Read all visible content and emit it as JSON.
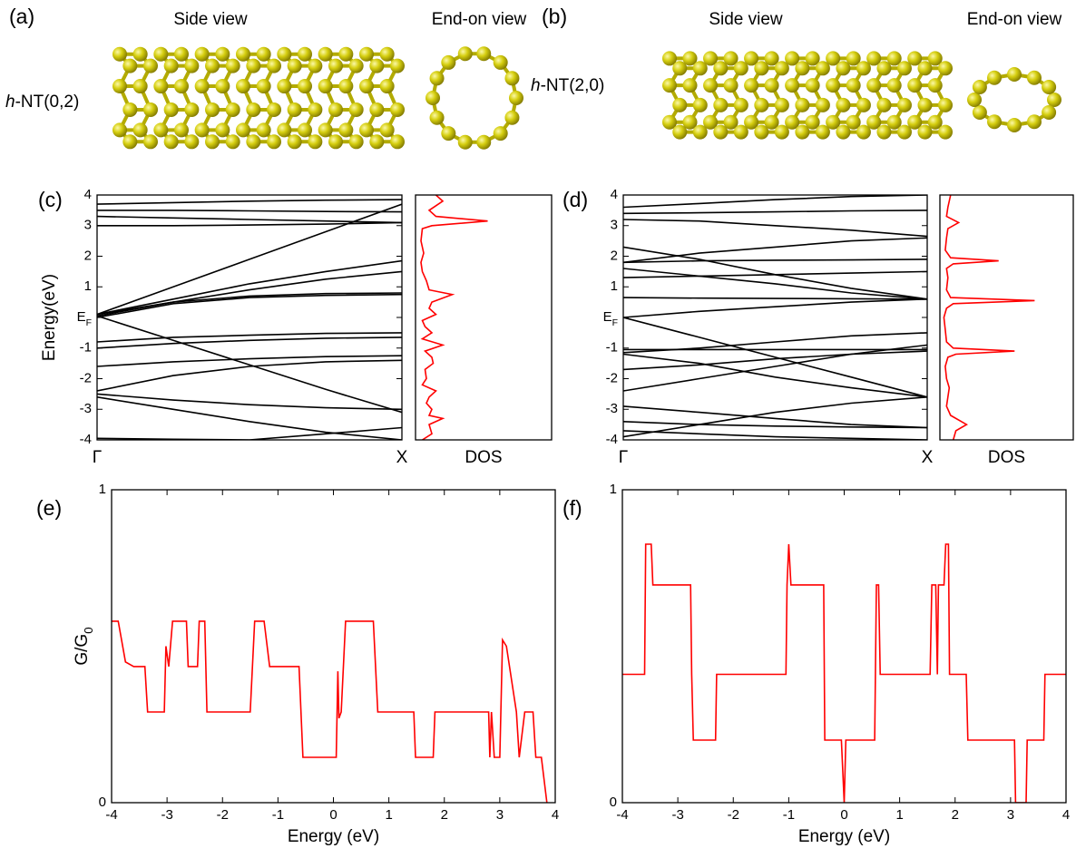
{
  "panels": {
    "a": {
      "label": "(a)",
      "side": "Side view",
      "end": "End-on view",
      "name": "h-NT(0,2)"
    },
    "b": {
      "label": "(b)",
      "side": "Side view",
      "end": "End-on view",
      "name": "h-NT(2,0)"
    }
  },
  "chart_data": [
    {
      "type": "line",
      "label": "(c)",
      "ylabel": "Energy(eV)",
      "x": [
        0,
        0.25,
        0.5,
        0.75,
        1
      ],
      "xlim": [
        0,
        1
      ],
      "xticks": [
        {
          "value": 0,
          "label": "Γ"
        },
        {
          "value": 1,
          "label": "X"
        }
      ],
      "ylim": [
        -4,
        4
      ],
      "yticks": [
        4,
        3,
        2,
        1,
        {
          "value": 0,
          "label": "EF"
        },
        -1,
        -2,
        -3,
        -4
      ],
      "series": [
        {
          "color": "#000000",
          "values": [
            3.7,
            3.75,
            3.8,
            3.83,
            3.85
          ]
        },
        {
          "color": "#000000",
          "values": [
            3.5,
            3.5,
            3.48,
            3.46,
            3.45
          ]
        },
        {
          "color": "#000000",
          "values": [
            3.3,
            3.25,
            3.2,
            3.15,
            3.1
          ]
        },
        {
          "color": "#000000",
          "values": [
            3.0,
            3.0,
            3.02,
            3.05,
            3.1
          ]
        },
        {
          "color": "#000000",
          "values": [
            0.1,
            1.0,
            1.9,
            2.8,
            3.7
          ]
        },
        {
          "color": "#000000",
          "values": [
            0.1,
            0.6,
            1.1,
            1.5,
            1.85
          ]
        },
        {
          "color": "#000000",
          "values": [
            0.1,
            0.5,
            0.9,
            1.25,
            1.5
          ]
        },
        {
          "color": "#000000",
          "values": [
            0.05,
            0.5,
            0.7,
            0.78,
            0.8
          ]
        },
        {
          "color": "#000000",
          "values": [
            0.0,
            0.45,
            0.65,
            0.72,
            0.75
          ]
        },
        {
          "color": "#000000",
          "values": [
            0.05,
            -0.75,
            -1.55,
            -2.35,
            -3.1
          ]
        },
        {
          "color": "#000000",
          "values": [
            -0.8,
            -0.65,
            -0.58,
            -0.52,
            -0.5
          ]
        },
        {
          "color": "#000000",
          "values": [
            -1.0,
            -0.85,
            -0.75,
            -0.68,
            -0.65
          ]
        },
        {
          "color": "#000000",
          "values": [
            -1.6,
            -1.45,
            -1.35,
            -1.28,
            -1.25
          ]
        },
        {
          "color": "#000000",
          "values": [
            -2.4,
            -1.9,
            -1.6,
            -1.45,
            -1.4
          ]
        },
        {
          "color": "#000000",
          "values": [
            -2.5,
            -2.7,
            -2.85,
            -2.95,
            -3.0
          ]
        },
        {
          "color": "#000000",
          "values": [
            -2.6,
            -3.0,
            -3.4,
            -3.75,
            -4.0
          ]
        },
        {
          "color": "#000000",
          "values": [
            -3.95,
            -3.98,
            -4.0,
            -3.8,
            -3.6
          ]
        }
      ]
    },
    {
      "type": "line",
      "orientation": "horizontal",
      "ylabel": "DOS",
      "x": [
        -4,
        -3.8,
        -3.5,
        -3.3,
        -3.2,
        -3.0,
        -2.8,
        -2.6,
        -2.4,
        -2.2,
        -2.0,
        -1.7,
        -1.5,
        -1.3,
        -1.1,
        -0.9,
        -0.7,
        -0.5,
        -0.3,
        -0.1,
        0.1,
        0.3,
        0.5,
        0.75,
        0.9,
        1.2,
        1.5,
        1.8,
        2.1,
        2.5,
        2.9,
        3.0,
        3.15,
        3.3,
        3.5,
        3.8,
        4
      ],
      "xlim": [
        -4,
        4
      ],
      "ylim": [
        0,
        1
      ],
      "series": [
        {
          "color": "#ff0000",
          "values": [
            0.05,
            0.12,
            0.1,
            0.2,
            0.1,
            0.12,
            0.08,
            0.1,
            0.15,
            0.05,
            0.08,
            0.07,
            0.13,
            0.12,
            0.07,
            0.2,
            0.05,
            0.12,
            0.07,
            0.05,
            0.15,
            0.1,
            0.12,
            0.27,
            0.1,
            0.08,
            0.05,
            0.04,
            0.06,
            0.04,
            0.05,
            0.12,
            0.53,
            0.15,
            0.1,
            0.2,
            0.15
          ]
        }
      ]
    },
    {
      "type": "line",
      "label": "(d)",
      "x": [
        0,
        0.25,
        0.5,
        0.75,
        1
      ],
      "xlim": [
        0,
        1
      ],
      "xticks": [
        {
          "value": 0,
          "label": "Γ"
        },
        {
          "value": 1,
          "label": "X"
        }
      ],
      "ylim": [
        -4,
        4
      ],
      "yticks": [
        4,
        3,
        2,
        1,
        {
          "value": 0,
          "label": "EF"
        },
        -1,
        -2,
        -3,
        -4
      ],
      "series": [
        {
          "color": "#000000",
          "values": [
            3.6,
            3.72,
            3.85,
            3.95,
            4.0
          ]
        },
        {
          "color": "#000000",
          "values": [
            3.4,
            3.42,
            3.45,
            3.48,
            3.5
          ]
        },
        {
          "color": "#000000",
          "values": [
            3.2,
            3.15,
            3.0,
            2.85,
            2.65
          ]
        },
        {
          "color": "#000000",
          "values": [
            2.3,
            1.9,
            1.4,
            0.95,
            0.6
          ]
        },
        {
          "color": "#000000",
          "values": [
            1.8,
            1.85,
            1.87,
            1.88,
            1.9
          ]
        },
        {
          "color": "#000000",
          "values": [
            1.8,
            2.1,
            2.3,
            2.5,
            2.6
          ]
        },
        {
          "color": "#000000",
          "values": [
            1.6,
            1.35,
            1.1,
            0.8,
            0.6
          ]
        },
        {
          "color": "#000000",
          "values": [
            1.3,
            1.35,
            1.4,
            1.45,
            1.5
          ]
        },
        {
          "color": "#000000",
          "values": [
            0.65,
            0.63,
            0.62,
            0.61,
            0.6
          ]
        },
        {
          "color": "#000000",
          "values": [
            0.0,
            0.2,
            0.35,
            0.5,
            0.6
          ]
        },
        {
          "color": "#000000",
          "values": [
            0.0,
            -0.65,
            -1.3,
            -1.95,
            -2.6
          ]
        },
        {
          "color": "#000000",
          "values": [
            -1.05,
            -1.05,
            -1.05,
            -1.05,
            -1.05
          ]
        },
        {
          "color": "#000000",
          "values": [
            -1.15,
            -1.0,
            -0.8,
            -0.6,
            -0.5
          ]
        },
        {
          "color": "#000000",
          "values": [
            -1.2,
            -1.5,
            -1.95,
            -2.3,
            -2.6
          ]
        },
        {
          "color": "#000000",
          "values": [
            -1.7,
            -1.55,
            -1.35,
            -1.2,
            -1.1
          ]
        },
        {
          "color": "#000000",
          "values": [
            -2.4,
            -2.0,
            -1.6,
            -1.2,
            -0.9
          ]
        },
        {
          "color": "#000000",
          "values": [
            -2.9,
            -3.1,
            -3.3,
            -3.5,
            -3.6
          ]
        },
        {
          "color": "#000000",
          "values": [
            -3.4,
            -3.5,
            -3.55,
            -3.58,
            -3.6
          ]
        },
        {
          "color": "#000000",
          "values": [
            -3.9,
            -3.5,
            -3.1,
            -2.8,
            -2.6
          ]
        },
        {
          "color": "#000000",
          "values": [
            -3.7,
            -3.8,
            -3.9,
            -3.95,
            -4.0
          ]
        }
      ]
    },
    {
      "type": "line",
      "orientation": "horizontal",
      "ylabel": "DOS",
      "x": [
        -4,
        -3.7,
        -3.5,
        -3.2,
        -2.9,
        -2.6,
        -2.3,
        -2.0,
        -1.6,
        -1.3,
        -1.2,
        -1.1,
        -1.0,
        -0.8,
        -0.4,
        0,
        0.3,
        0.45,
        0.55,
        0.65,
        0.9,
        1.3,
        1.6,
        1.75,
        1.85,
        1.95,
        2.2,
        2.6,
        2.9,
        3.1,
        3.3,
        3.6,
        4
      ],
      "xlim": [
        -4,
        4
      ],
      "ylim": [
        0,
        1
      ],
      "series": [
        {
          "color": "#ff0000",
          "values": [
            0.1,
            0.12,
            0.2,
            0.08,
            0.05,
            0.06,
            0.07,
            0.05,
            0.04,
            0.06,
            0.12,
            0.56,
            0.1,
            0.05,
            0.04,
            0.03,
            0.05,
            0.1,
            0.71,
            0.08,
            0.05,
            0.06,
            0.05,
            0.1,
            0.44,
            0.08,
            0.04,
            0.05,
            0.06,
            0.14,
            0.05,
            0.06,
            0.08
          ]
        }
      ]
    },
    {
      "type": "line",
      "label": "(e)",
      "xlabel": "Energy (eV)",
      "ylabel": "G/G0",
      "xlim": [
        -4,
        4
      ],
      "xticks": [
        -4,
        -3,
        -2,
        -1,
        0,
        1,
        2,
        3,
        4
      ],
      "ylim": [
        0,
        1
      ],
      "yticks": [
        0,
        1
      ],
      "series": [
        {
          "color": "#ff0000",
          "x": [
            -4,
            -3.88,
            -3.75,
            -3.6,
            -3.4,
            -3.35,
            -3.05,
            -3.02,
            -2.97,
            -2.9,
            -2.65,
            -2.62,
            -2.45,
            -2.42,
            -2.32,
            -2.28,
            -1.5,
            -1.42,
            -1.25,
            -1.15,
            -0.62,
            -0.55,
            0.05,
            0.08,
            0.1,
            0.14,
            0.22,
            0.72,
            0.8,
            1.45,
            1.48,
            1.8,
            1.83,
            2.8,
            2.82,
            2.85,
            2.9,
            3.0,
            3.05,
            3.12,
            3.3,
            3.35,
            3.45,
            3.6,
            3.65,
            3.75,
            3.85
          ],
          "values": [
            0.58,
            0.58,
            0.45,
            0.435,
            0.435,
            0.29,
            0.29,
            0.5,
            0.435,
            0.58,
            0.58,
            0.435,
            0.435,
            0.58,
            0.58,
            0.29,
            0.29,
            0.58,
            0.58,
            0.435,
            0.435,
            0.145,
            0.145,
            0.42,
            0.27,
            0.29,
            0.58,
            0.58,
            0.29,
            0.29,
            0.145,
            0.145,
            0.29,
            0.29,
            0.145,
            0.29,
            0.145,
            0.145,
            0.52,
            0.5,
            0.29,
            0.145,
            0.29,
            0.29,
            0.145,
            0.145,
            0
          ]
        }
      ]
    },
    {
      "type": "line",
      "label": "(f)",
      "xlabel": "Energy (eV)",
      "xlim": [
        -4,
        4
      ],
      "xticks": [
        -4,
        -3,
        -2,
        -1,
        0,
        1,
        2,
        3,
        4
      ],
      "ylim": [
        0,
        1
      ],
      "yticks": [
        0,
        1
      ],
      "series": [
        {
          "color": "#ff0000",
          "x": [
            -4,
            -3.6,
            -3.58,
            -3.48,
            -3.45,
            -2.77,
            -2.75,
            -2.72,
            -2.32,
            -2.3,
            -1.05,
            -1.03,
            -1.0,
            -0.96,
            -0.37,
            -0.35,
            -0.05,
            0,
            0.03,
            0.55,
            0.58,
            0.62,
            0.65,
            1.55,
            1.58,
            1.65,
            1.68,
            1.7,
            1.8,
            1.83,
            1.88,
            1.9,
            2.2,
            2.23,
            3.07,
            3.09,
            3.28,
            3.3,
            3.6,
            3.62,
            4
          ],
          "values": [
            0.41,
            0.41,
            0.826,
            0.826,
            0.696,
            0.696,
            0.41,
            0.2,
            0.2,
            0.41,
            0.41,
            0.696,
            0.826,
            0.696,
            0.696,
            0.2,
            0.2,
            0,
            0.2,
            0.2,
            0.696,
            0.696,
            0.41,
            0.41,
            0.696,
            0.696,
            0.41,
            0.696,
            0.696,
            0.826,
            0.826,
            0.41,
            0.41,
            0.2,
            0.2,
            0,
            0,
            0.2,
            0.2,
            0.41,
            0.41
          ]
        }
      ]
    }
  ]
}
